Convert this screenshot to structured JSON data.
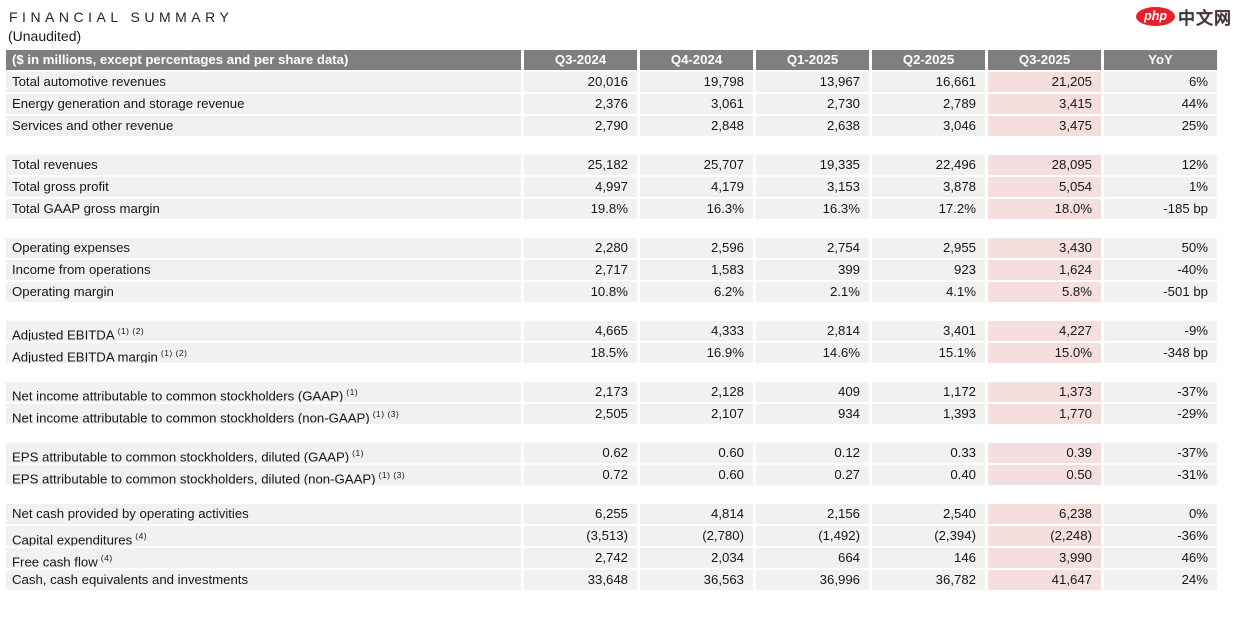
{
  "brand": {
    "badge": "php",
    "name": "中文网"
  },
  "title": "FINANCIAL SUMMARY",
  "subtitle": "(Unaudited)",
  "colors": {
    "header_bg": "#7f7f7f",
    "row_bg": "#f1f1ef",
    "highlight_bg": "#f4dfde",
    "brand_red": "#e62129"
  },
  "table": {
    "corner_label": "($ in millions, except percentages and per share data)",
    "columns": [
      "Q3-2024",
      "Q4-2024",
      "Q1-2025",
      "Q2-2025",
      "Q3-2025",
      "YoY"
    ],
    "highlight_column": "Q3-2025",
    "sections": [
      {
        "rows": [
          {
            "label": "Total automotive revenues",
            "sup": "",
            "values": [
              "20,016",
              "19,798",
              "13,967",
              "16,661",
              "21,205",
              "6%"
            ]
          },
          {
            "label": "Energy generation and storage revenue",
            "sup": "",
            "values": [
              "2,376",
              "3,061",
              "2,730",
              "2,789",
              "3,415",
              "44%"
            ]
          },
          {
            "label": "Services and other revenue",
            "sup": "",
            "values": [
              "2,790",
              "2,848",
              "2,638",
              "3,046",
              "3,475",
              "25%"
            ]
          }
        ]
      },
      {
        "rows": [
          {
            "label": "Total revenues",
            "sup": "",
            "values": [
              "25,182",
              "25,707",
              "19,335",
              "22,496",
              "28,095",
              "12%"
            ]
          },
          {
            "label": "Total gross profit",
            "sup": "",
            "values": [
              "4,997",
              "4,179",
              "3,153",
              "3,878",
              "5,054",
              "1%"
            ]
          },
          {
            "label": "Total GAAP gross margin",
            "sup": "",
            "values": [
              "19.8%",
              "16.3%",
              "16.3%",
              "17.2%",
              "18.0%",
              "-185 bp"
            ]
          }
        ]
      },
      {
        "rows": [
          {
            "label": "Operating expenses",
            "sup": "",
            "values": [
              "2,280",
              "2,596",
              "2,754",
              "2,955",
              "3,430",
              "50%"
            ]
          },
          {
            "label": "Income from operations",
            "sup": "",
            "values": [
              "2,717",
              "1,583",
              "399",
              "923",
              "1,624",
              "-40%"
            ]
          },
          {
            "label": "Operating margin",
            "sup": "",
            "values": [
              "10.8%",
              "6.2%",
              "2.1%",
              "4.1%",
              "5.8%",
              "-501 bp"
            ]
          }
        ]
      },
      {
        "rows": [
          {
            "label": "Adjusted EBITDA",
            "sup": "(1) (2)",
            "values": [
              "4,665",
              "4,333",
              "2,814",
              "3,401",
              "4,227",
              "-9%"
            ]
          },
          {
            "label": "Adjusted EBITDA margin",
            "sup": "(1) (2)",
            "values": [
              "18.5%",
              "16.9%",
              "14.6%",
              "15.1%",
              "15.0%",
              "-348 bp"
            ]
          }
        ]
      },
      {
        "rows": [
          {
            "label": "Net income attributable to common stockholders (GAAP)",
            "sup": "(1)",
            "values": [
              "2,173",
              "2,128",
              "409",
              "1,172",
              "1,373",
              "-37%"
            ]
          },
          {
            "label": "Net income attributable to common stockholders (non-GAAP)",
            "sup": "(1) (3)",
            "values": [
              "2,505",
              "2,107",
              "934",
              "1,393",
              "1,770",
              "-29%"
            ]
          }
        ]
      },
      {
        "rows": [
          {
            "label": "EPS attributable to common stockholders, diluted (GAAP)",
            "sup": "(1)",
            "values": [
              "0.62",
              "0.60",
              "0.12",
              "0.33",
              "0.39",
              "-37%"
            ]
          },
          {
            "label": "EPS attributable to common stockholders, diluted (non-GAAP)",
            "sup": "(1) (3)",
            "values": [
              "0.72",
              "0.60",
              "0.27",
              "0.40",
              "0.50",
              "-31%"
            ]
          }
        ]
      },
      {
        "rows": [
          {
            "label": "Net cash provided by operating activities",
            "sup": "",
            "values": [
              "6,255",
              "4,814",
              "2,156",
              "2,540",
              "6,238",
              "0%"
            ]
          },
          {
            "label": "Capital expenditures",
            "sup": "(4)",
            "values": [
              "(3,513)",
              "(2,780)",
              "(1,492)",
              "(2,394)",
              "(2,248)",
              "-36%"
            ]
          },
          {
            "label": "Free cash flow",
            "sup": "(4)",
            "values": [
              "2,742",
              "2,034",
              "664",
              "146",
              "3,990",
              "46%"
            ]
          },
          {
            "label": "Cash, cash equivalents and investments",
            "sup": "",
            "values": [
              "33,648",
              "36,563",
              "36,996",
              "36,782",
              "41,647",
              "24%"
            ]
          }
        ]
      }
    ]
  }
}
